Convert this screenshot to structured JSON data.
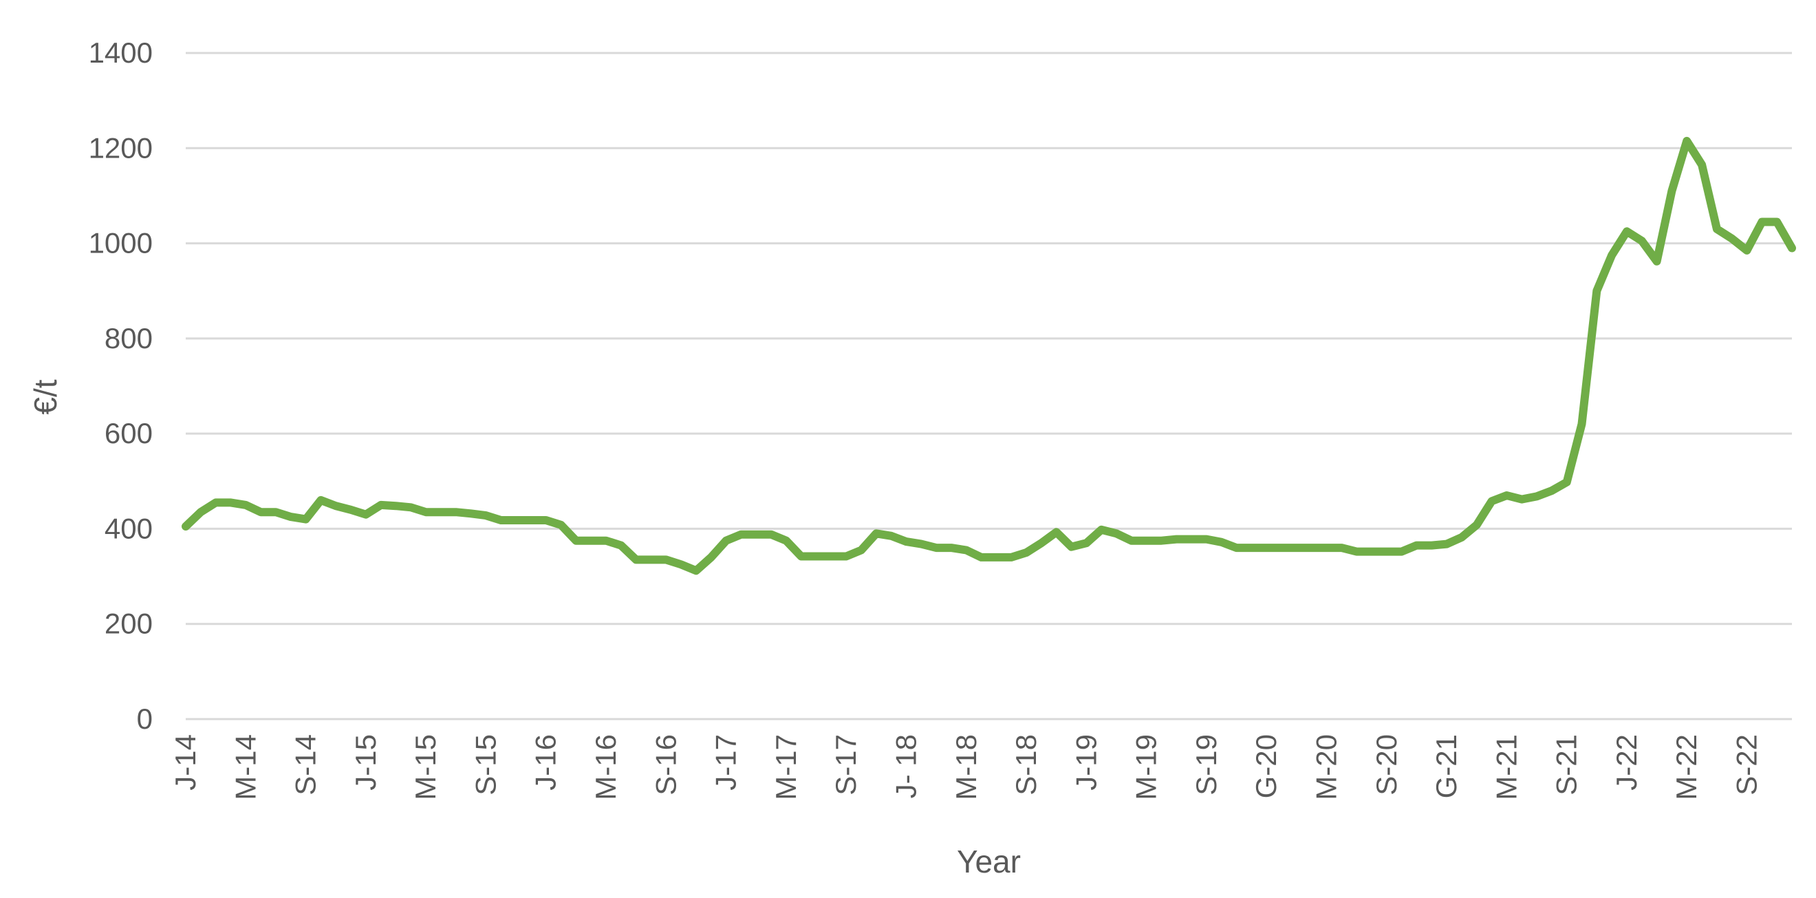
{
  "chart_data": {
    "type": "line",
    "title": "",
    "xlabel": "Year",
    "ylabel": "€/t",
    "ylim": [
      0,
      1400
    ],
    "yticks": [
      0,
      200,
      400,
      600,
      800,
      1000,
      1200,
      1400
    ],
    "grid": "horizontal",
    "legend": "none",
    "colors": {
      "series": "#70ad47",
      "grid": "#d9d9d9",
      "text": "#595959"
    },
    "x_tick_labels": [
      {
        "index": 0,
        "label": "J-14"
      },
      {
        "index": 4,
        "label": "M-14"
      },
      {
        "index": 8,
        "label": "S-14"
      },
      {
        "index": 12,
        "label": "J-15"
      },
      {
        "index": 16,
        "label": "M-15"
      },
      {
        "index": 20,
        "label": "S-15"
      },
      {
        "index": 24,
        "label": "J-16"
      },
      {
        "index": 28,
        "label": "M-16"
      },
      {
        "index": 32,
        "label": "S-16"
      },
      {
        "index": 36,
        "label": "J-17"
      },
      {
        "index": 40,
        "label": "M-17"
      },
      {
        "index": 44,
        "label": "S-17"
      },
      {
        "index": 48,
        "label": "J- 18"
      },
      {
        "index": 52,
        "label": "M-18"
      },
      {
        "index": 56,
        "label": "S-18"
      },
      {
        "index": 60,
        "label": "J-19"
      },
      {
        "index": 64,
        "label": "M-19"
      },
      {
        "index": 68,
        "label": "S-19"
      },
      {
        "index": 72,
        "label": "G-20"
      },
      {
        "index": 76,
        "label": "M-20"
      },
      {
        "index": 80,
        "label": "S-20"
      },
      {
        "index": 84,
        "label": "G-21"
      },
      {
        "index": 88,
        "label": "M-21"
      },
      {
        "index": 92,
        "label": "S-21"
      },
      {
        "index": 96,
        "label": "J-22"
      },
      {
        "index": 100,
        "label": "M-22"
      },
      {
        "index": 104,
        "label": "S-22"
      }
    ],
    "series": [
      {
        "values": [
          405,
          435,
          455,
          455,
          450,
          435,
          435,
          425,
          420,
          460,
          448,
          440,
          430,
          450,
          448,
          445,
          435,
          435,
          435,
          432,
          428,
          418,
          418,
          418,
          418,
          408,
          375,
          375,
          375,
          365,
          335,
          335,
          335,
          325,
          312,
          340,
          375,
          388,
          388,
          388,
          375,
          342,
          342,
          342,
          342,
          355,
          390,
          385,
          373,
          368,
          360,
          360,
          355,
          340,
          340,
          340,
          350,
          370,
          393,
          362,
          370,
          398,
          390,
          375,
          375,
          375,
          378,
          378,
          378,
          372,
          360,
          360,
          360,
          360,
          360,
          360,
          360,
          360,
          352,
          352,
          352,
          352,
          365,
          365,
          368,
          382,
          408,
          458,
          470,
          462,
          468,
          480,
          498,
          620,
          900,
          975,
          1025,
          1005,
          962,
          1110,
          1215,
          1165,
          1030,
          1010,
          985,
          1045,
          1045,
          990
        ]
      }
    ]
  }
}
